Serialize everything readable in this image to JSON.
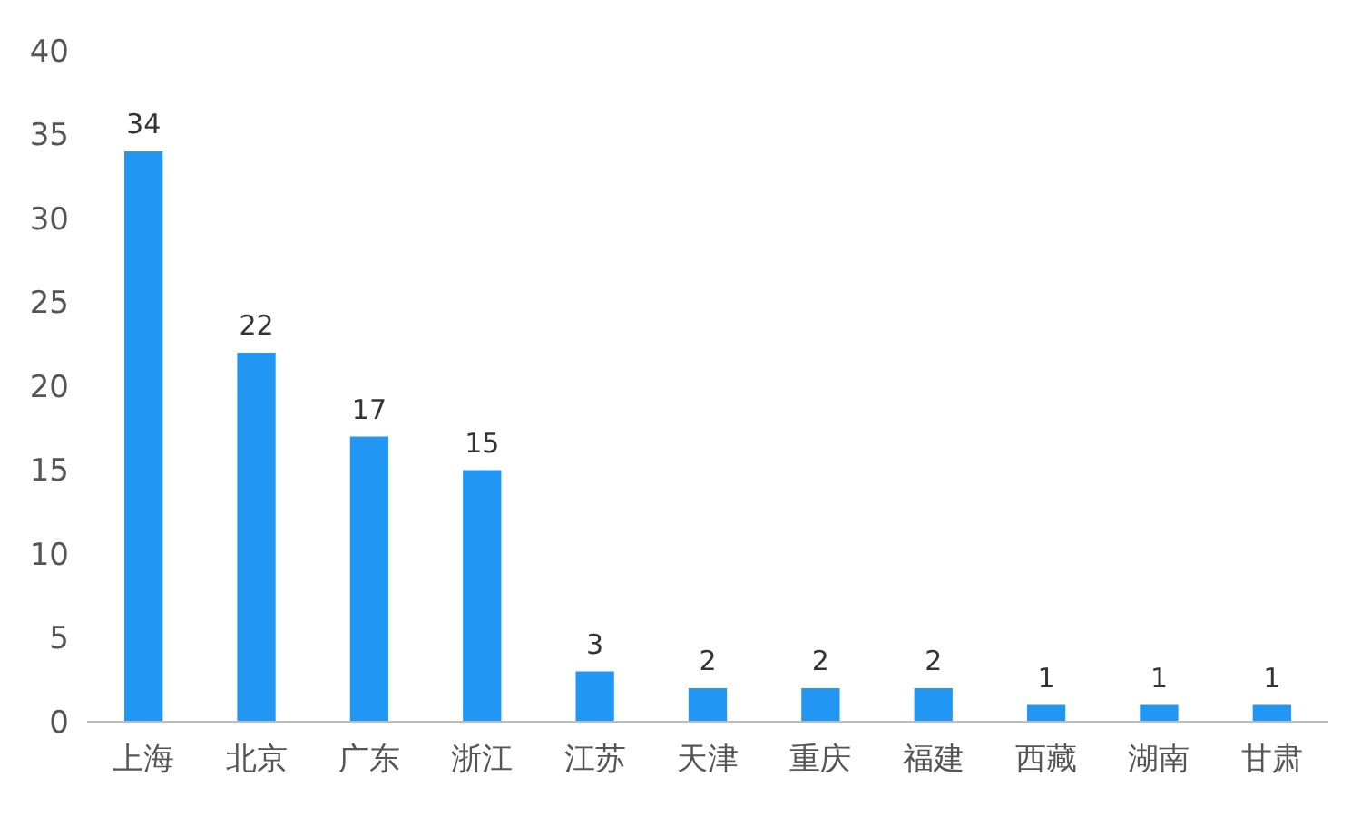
{
  "chart_data": {
    "type": "bar",
    "categories": [
      "上海",
      "北京",
      "广东",
      "浙江",
      "江苏",
      "天津",
      "重庆",
      "福建",
      "西藏",
      "湖南",
      "甘肃"
    ],
    "values": [
      34,
      22,
      17,
      15,
      3,
      2,
      2,
      2,
      1,
      1,
      1
    ],
    "color": "#2196f3",
    "ylim": [
      0,
      40
    ],
    "yticks": [
      0,
      5,
      10,
      15,
      20,
      25,
      30,
      35,
      40
    ],
    "data_labels": true
  }
}
